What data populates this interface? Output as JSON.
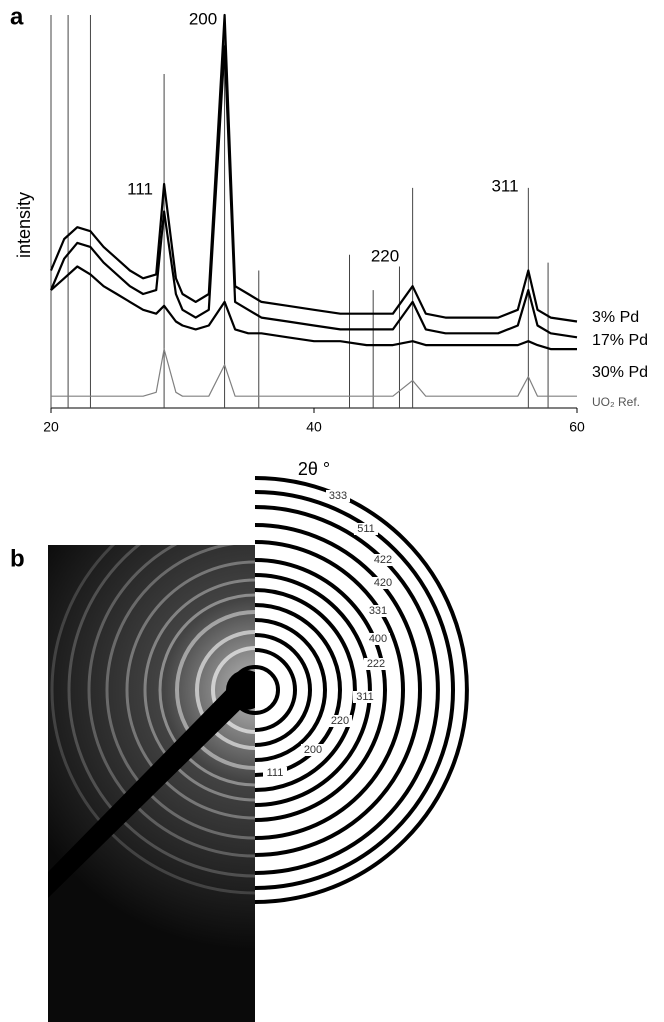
{
  "chart_data": {
    "type": "line",
    "panel_label": "a",
    "ylabel": "intensity",
    "xlabel": "2θ °",
    "xlim": [
      20,
      60
    ],
    "xticks": [
      20,
      40,
      60
    ],
    "ylim": [
      0,
      100
    ],
    "x": [
      20,
      21,
      22,
      23,
      24,
      25,
      26,
      27,
      28,
      28.6,
      29.5,
      30,
      31,
      32,
      33.2,
      34,
      35,
      36,
      38,
      40,
      42,
      44,
      46,
      47.5,
      48.5,
      50,
      52,
      54,
      55.5,
      56.3,
      57,
      58,
      60
    ],
    "series": [
      {
        "name": "3% Pd",
        "color": "#000000",
        "values": [
          35,
          43,
          46,
          45,
          41,
          38,
          35,
          33,
          34,
          57,
          33,
          29,
          27,
          29,
          100,
          31,
          29,
          27,
          26,
          25,
          24,
          24,
          24,
          31,
          24,
          23,
          23,
          23,
          25,
          35,
          25,
          23,
          22
        ]
      },
      {
        "name": "17% Pd",
        "color": "#000000",
        "values": [
          30,
          38,
          42,
          41,
          37,
          34,
          31,
          29,
          30,
          50,
          29,
          25,
          23,
          25,
          92,
          27,
          25,
          23,
          22,
          21,
          20,
          20,
          20,
          27,
          20,
          19,
          19,
          19,
          21,
          30,
          21,
          19,
          18
        ]
      },
      {
        "name": "30% Pd",
        "color": "#000000",
        "values": [
          30,
          33,
          36,
          34,
          31,
          29,
          27,
          25,
          24,
          26,
          22,
          21,
          20,
          21,
          27,
          20,
          19,
          19,
          18,
          17,
          17,
          16,
          16,
          17,
          16,
          16,
          16,
          16,
          16,
          17,
          16,
          15,
          15
        ]
      },
      {
        "name": "UO₂ Ref.",
        "color": "#808080",
        "values": [
          3,
          3,
          3,
          3,
          3,
          3,
          3,
          3,
          4,
          15,
          4,
          3,
          3,
          3,
          11,
          3,
          3,
          3,
          3,
          3,
          3,
          3,
          3,
          7,
          3,
          3,
          3,
          3,
          3,
          8,
          3,
          3,
          3
        ]
      }
    ],
    "reference_lines": {
      "color": "#444444",
      "x": [
        20,
        21.3,
        23,
        28.6,
        33.2,
        35.8,
        42.7,
        44.5,
        46.5,
        47.5,
        56.3,
        57.8
      ],
      "values": [
        100,
        100,
        100,
        85,
        100,
        35,
        39,
        30,
        36,
        56,
        56,
        37
      ]
    },
    "annotations": [
      "111",
      "200",
      "220",
      "311"
    ]
  },
  "diffraction": {
    "panel_label": "b",
    "rings": [
      "111",
      "200",
      "220",
      "311",
      "222",
      "400",
      "331",
      "420",
      "422",
      "511",
      "333"
    ]
  }
}
